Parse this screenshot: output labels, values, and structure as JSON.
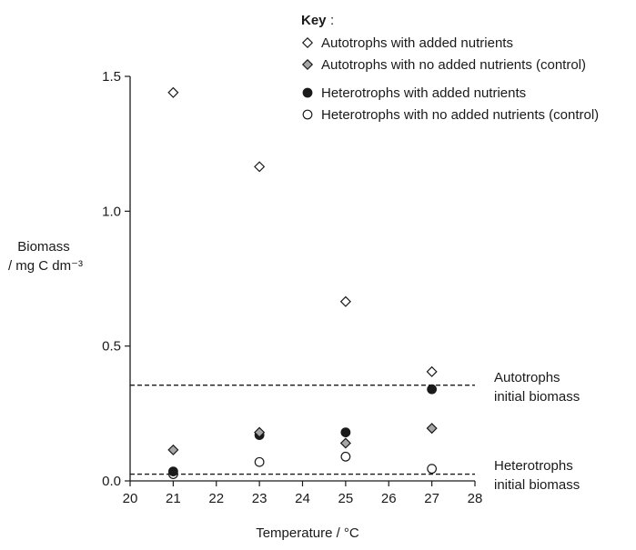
{
  "chart_data": {
    "type": "scatter",
    "xlabel": "Temperature / °C",
    "ylabel_line1": "Biomass",
    "ylabel_line2": "/ mg C dm⁻³",
    "xlim": [
      20,
      28
    ],
    "ylim": [
      0.0,
      1.5
    ],
    "xticks": [
      "20",
      "21",
      "22",
      "23",
      "24",
      "25",
      "26",
      "27",
      "28"
    ],
    "yticks": [
      "0.0",
      "0.5",
      "1.0",
      "1.5"
    ],
    "ytick_values": [
      0.0,
      0.5,
      1.0,
      1.5
    ],
    "legend": {
      "title": "Key",
      "title_suffix": ":",
      "placement": "top-right"
    },
    "series": [
      {
        "name": "Autotrophs with added nutrients",
        "marker": "diamond-open",
        "x": [
          21,
          23,
          25,
          27
        ],
        "y": [
          1.44,
          1.165,
          0.665,
          0.405
        ]
      },
      {
        "name": "Autotrophs with no added nutrients (control)",
        "marker": "diamond-grey",
        "x": [
          21,
          23,
          25,
          27
        ],
        "y": [
          0.115,
          0.18,
          0.14,
          0.195
        ]
      },
      {
        "name": "Heterotrophs with added nutrients",
        "marker": "circle-filled",
        "x": [
          21,
          23,
          25,
          27
        ],
        "y": [
          0.035,
          0.17,
          0.18,
          0.34
        ]
      },
      {
        "name": "Heterotrophs with no added nutrients (control)",
        "marker": "circle-open",
        "x": [
          21,
          23,
          25,
          27
        ],
        "y": [
          0.025,
          0.07,
          0.09,
          0.045
        ]
      }
    ],
    "reference_lines": [
      {
        "y": 0.355,
        "label_line1": "Autotrophs",
        "label_line2": "initial biomass"
      },
      {
        "y": 0.025,
        "label_line1": "Heterotrophs",
        "label_line2": "initial biomass"
      }
    ]
  },
  "colors": {
    "ink": "#1a1a1a",
    "grey_fill": "#a6a6a6",
    "open_fill": "#ffffff"
  }
}
